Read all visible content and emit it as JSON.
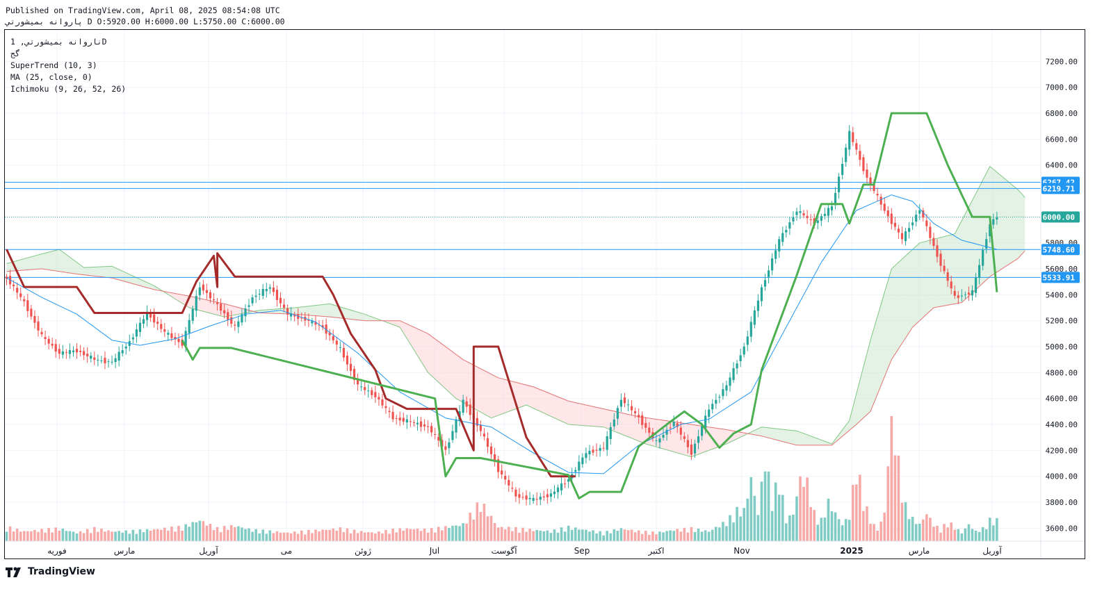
{
  "header": {
    "published": "Published on TradingView.com, April 08, 2025 08:54:08 UTC",
    "ohlc": "ﭘﺎﺭﻭﺍﻧﻪ ﺑﻤﻴﺸﻮﺭﺗﻲ D O:5920.00 H:6000.00 L:5750.00 C:6000.00"
  },
  "legend": {
    "symbol": "ﻧﺎﺭﻭﺍﻧﻪ ﺑﻤﻴﺸﻮﺭﺗﻲ, 1D",
    "exchange": "ﮔﺞ",
    "indicator1": "SuperTrend (10, 3)",
    "indicator2": "MA (25, close, 0)",
    "indicator3": "Ichimoku (9, 26, 52, 26)"
  },
  "footer": {
    "brand": "TradingView"
  },
  "colors": {
    "up": "#26a69a",
    "down": "#ef5350",
    "st_up": "#4caf50",
    "st_down": "#a52a2a",
    "ma": "#2196f3",
    "line": "#2196f3",
    "last": "#26a69a",
    "cloud_green": "#c8e6c9",
    "cloud_red": "#ffcdd2"
  },
  "chart_data": {
    "type": "candlestick",
    "ylim": [
      3500,
      7400
    ],
    "yticks": [
      3600,
      3800,
      4000,
      4200,
      4400,
      4600,
      4800,
      5000,
      5200,
      5400,
      5600,
      5800,
      6000,
      6200,
      6400,
      6600,
      6800,
      7000,
      7200
    ],
    "xticks": [
      "ﻓﻮﺭﯾﻪ",
      "ﻣﺎﺭﺱ",
      "ﺁﻭﺭﯾﻞ",
      "ﻣﯽ",
      "ﮊﻭﺋﻦ",
      "Jul",
      "ﺁﮔﻮﺳﺖ",
      "Sep",
      "ﺍﮐﺘﺒﺮ",
      "Nov",
      "2025",
      "ﻣﺎﺭﺱ",
      "ﺁﻭﺭﯾﻞ"
    ],
    "price_labels": [
      {
        "value": 6267.42,
        "text": "6267.42",
        "kind": "line"
      },
      {
        "value": 6219.71,
        "text": "6219.71",
        "kind": "line"
      },
      {
        "value": 6000.0,
        "text": "6000.00",
        "kind": "last"
      },
      {
        "value": 5748.6,
        "text": "5748.60",
        "kind": "line"
      },
      {
        "value": 5533.91,
        "text": "5533.91",
        "kind": "line"
      }
    ],
    "price_path": [
      [
        0,
        5530
      ],
      [
        5,
        5340
      ],
      [
        10,
        5080
      ],
      [
        15,
        4950
      ],
      [
        20,
        4970
      ],
      [
        25,
        4900
      ],
      [
        30,
        4880
      ],
      [
        35,
        5040
      ],
      [
        40,
        5260
      ],
      [
        45,
        5110
      ],
      [
        50,
        5020
      ],
      [
        55,
        5470
      ],
      [
        60,
        5320
      ],
      [
        65,
        5150
      ],
      [
        70,
        5380
      ],
      [
        75,
        5460
      ],
      [
        80,
        5250
      ],
      [
        85,
        5210
      ],
      [
        90,
        5150
      ],
      [
        95,
        4980
      ],
      [
        100,
        4700
      ],
      [
        105,
        4620
      ],
      [
        110,
        4450
      ],
      [
        115,
        4420
      ],
      [
        120,
        4380
      ],
      [
        125,
        4200
      ],
      [
        130,
        4580
      ],
      [
        135,
        4350
      ],
      [
        140,
        4050
      ],
      [
        145,
        3850
      ],
      [
        150,
        3820
      ],
      [
        155,
        3860
      ],
      [
        160,
        3980
      ],
      [
        165,
        4180
      ],
      [
        170,
        4220
      ],
      [
        175,
        4600
      ],
      [
        180,
        4450
      ],
      [
        185,
        4260
      ],
      [
        190,
        4420
      ],
      [
        195,
        4180
      ],
      [
        200,
        4520
      ],
      [
        205,
        4700
      ],
      [
        210,
        5000
      ],
      [
        215,
        5450
      ],
      [
        220,
        5820
      ],
      [
        225,
        6050
      ],
      [
        230,
        5950
      ],
      [
        235,
        6080
      ],
      [
        240,
        6650
      ],
      [
        245,
        6300
      ],
      [
        250,
        6050
      ],
      [
        255,
        5830
      ],
      [
        260,
        6060
      ],
      [
        265,
        5700
      ],
      [
        270,
        5380
      ],
      [
        275,
        5420
      ],
      [
        280,
        5950
      ],
      [
        282,
        6000
      ]
    ],
    "supertrend_down": [
      [
        0,
        5750
      ],
      [
        5,
        5460
      ],
      [
        20,
        5460
      ],
      [
        25,
        5260
      ],
      [
        50,
        5260
      ],
      [
        54,
        5500
      ],
      [
        59,
        5700
      ],
      [
        60,
        5460
      ],
      [
        60,
        5720
      ],
      [
        65,
        5540
      ],
      [
        90,
        5540
      ],
      [
        93,
        5400
      ],
      [
        98,
        5100
      ],
      [
        105,
        4820
      ],
      [
        108,
        4600
      ],
      [
        114,
        4520
      ],
      [
        128,
        4520
      ],
      [
        133,
        4200
      ],
      [
        133,
        5000
      ],
      [
        140,
        5000
      ],
      [
        148,
        4300
      ],
      [
        155,
        4000
      ],
      [
        162,
        4000
      ]
    ],
    "supertrend_up": [
      [
        50,
        5050
      ],
      [
        53,
        4900
      ],
      [
        55,
        4990
      ],
      [
        64,
        4990
      ],
      [
        122,
        4600
      ],
      [
        125,
        4000
      ],
      [
        128,
        4140
      ],
      [
        135,
        4140
      ],
      [
        160,
        4010
      ],
      [
        163,
        3830
      ],
      [
        166,
        3880
      ],
      [
        175,
        3880
      ],
      [
        180,
        4230
      ],
      [
        188,
        4400
      ],
      [
        193,
        4500
      ],
      [
        198,
        4400
      ],
      [
        203,
        4220
      ],
      [
        207,
        4330
      ],
      [
        212,
        4400
      ],
      [
        215,
        4820
      ],
      [
        225,
        5550
      ],
      [
        232,
        6100
      ],
      [
        238,
        6100
      ],
      [
        240,
        5950
      ],
      [
        244,
        6250
      ],
      [
        247,
        6250
      ],
      [
        252,
        6800
      ],
      [
        262,
        6800
      ],
      [
        268,
        6400
      ],
      [
        275,
        6000
      ],
      [
        280,
        6000
      ],
      [
        282,
        5420
      ]
    ],
    "ma": [
      [
        0,
        5530
      ],
      [
        10,
        5380
      ],
      [
        20,
        5250
      ],
      [
        30,
        5050
      ],
      [
        38,
        5010
      ],
      [
        48,
        5060
      ],
      [
        58,
        5160
      ],
      [
        68,
        5250
      ],
      [
        78,
        5280
      ],
      [
        88,
        5190
      ],
      [
        100,
        4950
      ],
      [
        112,
        4650
      ],
      [
        125,
        4450
      ],
      [
        138,
        4380
      ],
      [
        150,
        4180
      ],
      [
        160,
        4030
      ],
      [
        170,
        4020
      ],
      [
        180,
        4240
      ],
      [
        192,
        4400
      ],
      [
        200,
        4440
      ],
      [
        212,
        4650
      ],
      [
        222,
        5150
      ],
      [
        232,
        5650
      ],
      [
        242,
        6050
      ],
      [
        252,
        6170
      ],
      [
        258,
        6120
      ],
      [
        264,
        5950
      ],
      [
        272,
        5820
      ],
      [
        282,
        5750
      ]
    ],
    "cloud_a": [
      [
        0,
        5640
      ],
      [
        8,
        5700
      ],
      [
        15,
        5750
      ],
      [
        22,
        5610
      ],
      [
        30,
        5620
      ],
      [
        42,
        5470
      ],
      [
        52,
        5300
      ],
      [
        62,
        5230
      ],
      [
        72,
        5280
      ],
      [
        82,
        5300
      ],
      [
        92,
        5330
      ],
      [
        102,
        5250
      ],
      [
        112,
        5150
      ],
      [
        120,
        4800
      ],
      [
        128,
        4600
      ],
      [
        138,
        4450
      ],
      [
        148,
        4550
      ],
      [
        160,
        4400
      ],
      [
        170,
        4380
      ],
      [
        182,
        4250
      ],
      [
        195,
        4150
      ],
      [
        205,
        4250
      ],
      [
        215,
        4380
      ],
      [
        225,
        4350
      ],
      [
        235,
        4250
      ],
      [
        240,
        4430
      ],
      [
        246,
        5050
      ],
      [
        252,
        5600
      ],
      [
        260,
        5800
      ],
      [
        270,
        5870
      ],
      [
        276,
        6180
      ],
      [
        280,
        6390
      ],
      [
        288,
        6210
      ],
      [
        290,
        6150
      ]
    ],
    "cloud_b": [
      [
        0,
        5580
      ],
      [
        10,
        5600
      ],
      [
        20,
        5560
      ],
      [
        30,
        5530
      ],
      [
        42,
        5440
      ],
      [
        52,
        5390
      ],
      [
        62,
        5330
      ],
      [
        72,
        5260
      ],
      [
        82,
        5250
      ],
      [
        92,
        5230
      ],
      [
        102,
        5200
      ],
      [
        112,
        5200
      ],
      [
        120,
        5100
      ],
      [
        130,
        4900
      ],
      [
        140,
        4760
      ],
      [
        150,
        4690
      ],
      [
        160,
        4580
      ],
      [
        170,
        4520
      ],
      [
        180,
        4460
      ],
      [
        195,
        4400
      ],
      [
        205,
        4360
      ],
      [
        215,
        4310
      ],
      [
        225,
        4240
      ],
      [
        235,
        4240
      ],
      [
        242,
        4400
      ],
      [
        246,
        4500
      ],
      [
        252,
        4900
      ],
      [
        258,
        5150
      ],
      [
        264,
        5300
      ],
      [
        272,
        5340
      ],
      [
        280,
        5540
      ],
      [
        288,
        5680
      ],
      [
        290,
        5740
      ]
    ],
    "volume": [
      [
        0,
        0.1
      ],
      [
        5,
        0.07
      ],
      [
        10,
        0.08
      ],
      [
        15,
        0.09
      ],
      [
        20,
        0.06
      ],
      [
        25,
        0.09
      ],
      [
        30,
        0.07
      ],
      [
        35,
        0.07
      ],
      [
        40,
        0.08
      ],
      [
        45,
        0.09
      ],
      [
        50,
        0.1
      ],
      [
        55,
        0.15
      ],
      [
        60,
        0.09
      ],
      [
        65,
        0.11
      ],
      [
        70,
        0.08
      ],
      [
        75,
        0.07
      ],
      [
        80,
        0.06
      ],
      [
        85,
        0.07
      ],
      [
        90,
        0.08
      ],
      [
        95,
        0.09
      ],
      [
        100,
        0.07
      ],
      [
        105,
        0.06
      ],
      [
        110,
        0.08
      ],
      [
        115,
        0.09
      ],
      [
        120,
        0.08
      ],
      [
        125,
        0.1
      ],
      [
        130,
        0.12
      ],
      [
        135,
        0.28
      ],
      [
        140,
        0.1
      ],
      [
        145,
        0.09
      ],
      [
        150,
        0.08
      ],
      [
        155,
        0.07
      ],
      [
        160,
        0.1
      ],
      [
        165,
        0.08
      ],
      [
        170,
        0.06
      ],
      [
        175,
        0.09
      ],
      [
        180,
        0.07
      ],
      [
        185,
        0.06
      ],
      [
        190,
        0.08
      ],
      [
        195,
        0.09
      ],
      [
        200,
        0.07
      ],
      [
        205,
        0.14
      ],
      [
        208,
        0.22
      ],
      [
        210,
        0.22
      ],
      [
        212,
        0.45
      ],
      [
        214,
        0.2
      ],
      [
        216,
        0.6
      ],
      [
        218,
        0.3
      ],
      [
        220,
        0.45
      ],
      [
        222,
        0.15
      ],
      [
        224,
        0.2
      ],
      [
        226,
        0.45
      ],
      [
        228,
        0.42
      ],
      [
        230,
        0.2
      ],
      [
        232,
        0.15
      ],
      [
        234,
        0.28
      ],
      [
        236,
        0.2
      ],
      [
        238,
        0.12
      ],
      [
        240,
        0.18
      ],
      [
        242,
        0.55
      ],
      [
        244,
        0.3
      ],
      [
        246,
        0.15
      ],
      [
        248,
        0.08
      ],
      [
        250,
        0.2
      ],
      [
        252,
        0.98
      ],
      [
        254,
        0.55
      ],
      [
        256,
        0.25
      ],
      [
        258,
        0.16
      ],
      [
        260,
        0.12
      ],
      [
        262,
        0.2
      ],
      [
        264,
        0.12
      ],
      [
        266,
        0.08
      ],
      [
        268,
        0.14
      ],
      [
        270,
        0.1
      ],
      [
        272,
        0.06
      ],
      [
        274,
        0.12
      ],
      [
        276,
        0.07
      ],
      [
        278,
        0.09
      ],
      [
        280,
        0.15
      ],
      [
        282,
        0.15
      ]
    ]
  }
}
